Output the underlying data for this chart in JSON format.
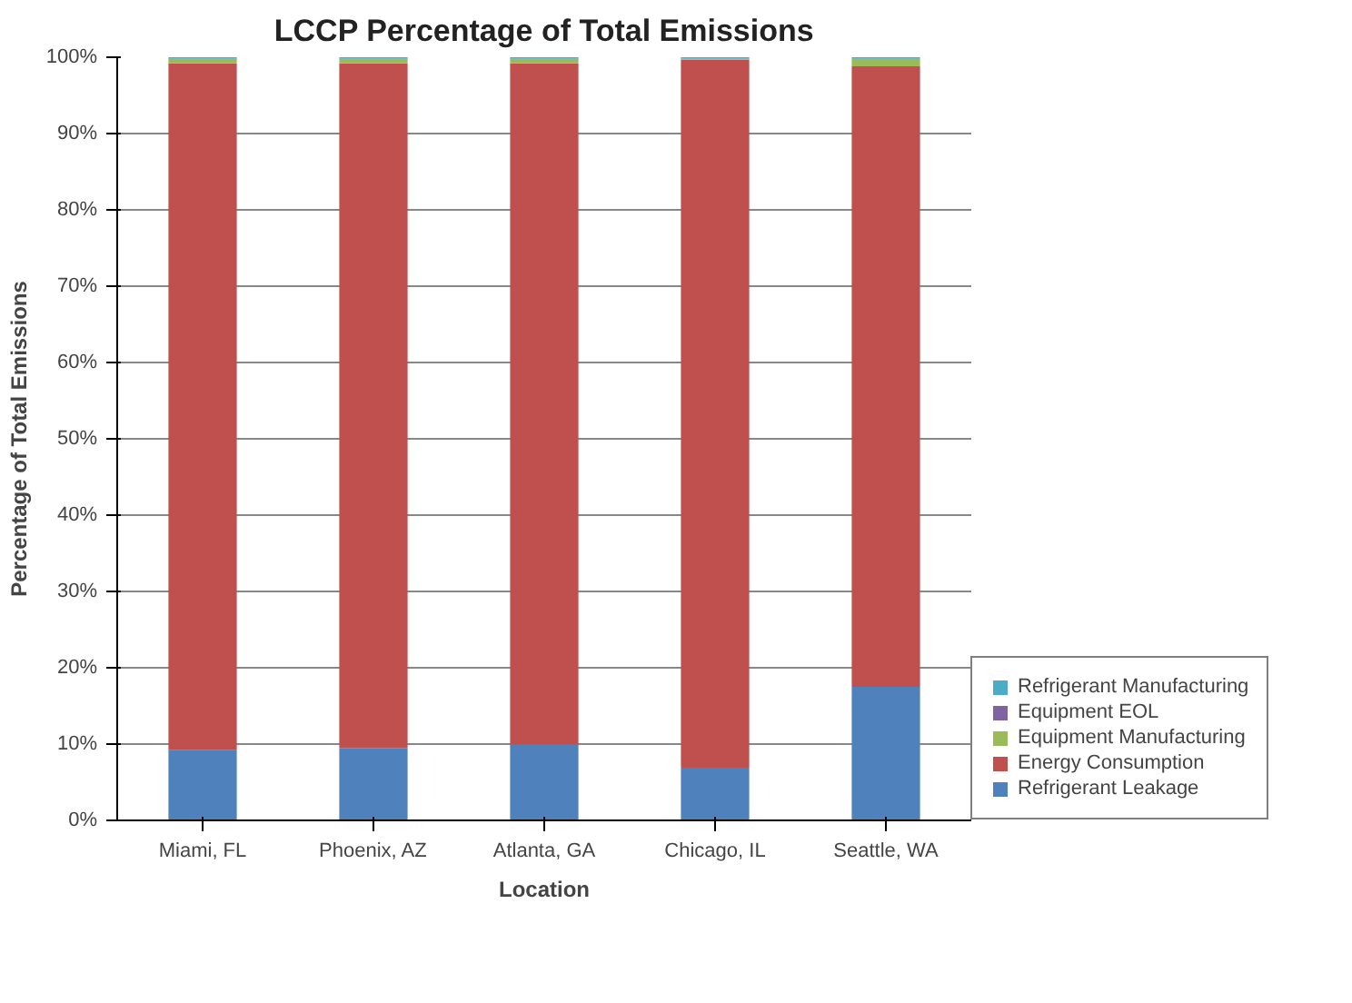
{
  "chart_data": {
    "type": "bar",
    "stacked": true,
    "title": "LCCP Percentage of Total Emissions",
    "xlabel": "Location",
    "ylabel": "Percentage of Total Emissions",
    "categories": [
      "Miami, FL",
      "Phoenix, AZ",
      "Atlanta, GA",
      "Chicago, IL",
      "Seattle, WA"
    ],
    "series": [
      {
        "name": "Refrigerant Leakage",
        "color": "#4f81bd",
        "values": [
          9.2,
          9.5,
          9.9,
          6.9,
          17.5
        ]
      },
      {
        "name": "Energy Consumption",
        "color": "#c0504d",
        "values": [
          90.0,
          89.7,
          89.3,
          92.8,
          81.3
        ]
      },
      {
        "name": "Equipment Manufacturing",
        "color": "#9bbb59",
        "values": [
          0.6,
          0.6,
          0.6,
          0.1,
          1.0
        ]
      },
      {
        "name": "Equipment EOL",
        "color": "#8064a2",
        "values": [
          0,
          0,
          0,
          0,
          0
        ]
      },
      {
        "name": "Refrigerant Manufacturing",
        "color": "#4bacc6",
        "values": [
          0.2,
          0.2,
          0.2,
          0.2,
          0.2
        ]
      }
    ],
    "ylim": [
      0,
      100
    ],
    "yticks": [
      {
        "value": 0,
        "label": "0%"
      },
      {
        "value": 10,
        "label": "10%"
      },
      {
        "value": 20,
        "label": "20%"
      },
      {
        "value": 30,
        "label": "30%"
      },
      {
        "value": 40,
        "label": "40%"
      },
      {
        "value": 50,
        "label": "50%"
      },
      {
        "value": 60,
        "label": "60%"
      },
      {
        "value": 70,
        "label": "70%"
      },
      {
        "value": 80,
        "label": "80%"
      },
      {
        "value": 90,
        "label": "90%"
      },
      {
        "value": 100,
        "label": "100%"
      }
    ],
    "grid": "y",
    "legend": "right"
  }
}
